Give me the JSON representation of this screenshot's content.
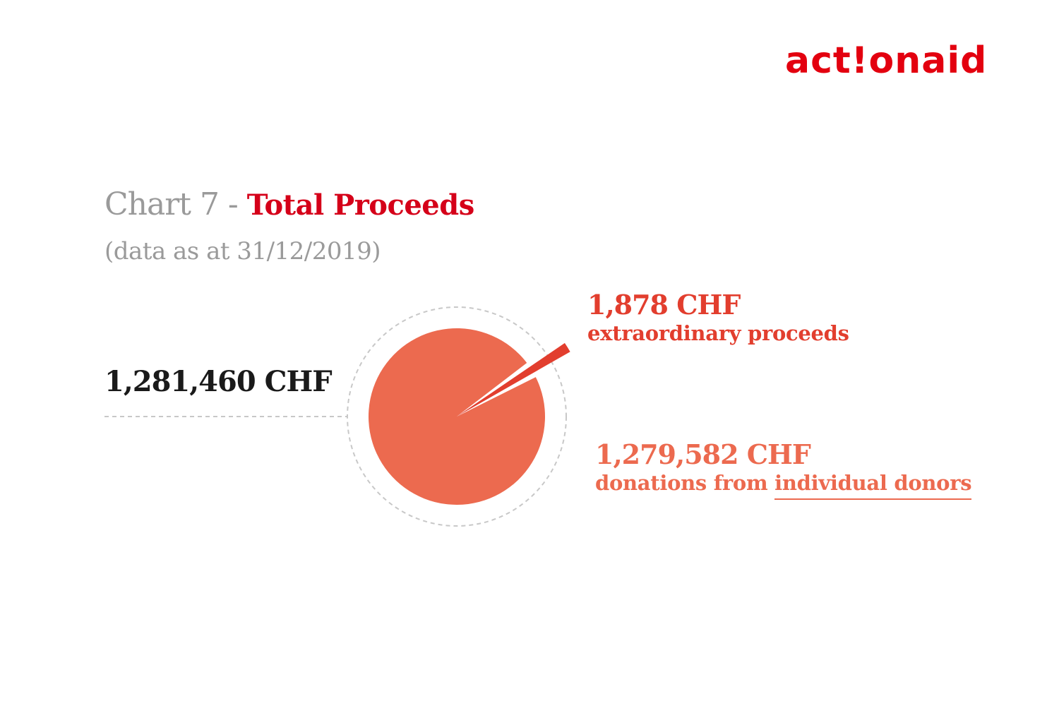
{
  "logo": {
    "text_before": "act",
    "text_mark": "!",
    "text_after": "onaid",
    "color": "#e3000f"
  },
  "title": {
    "prefix": "Chart 7 - ",
    "main": "Total Proceeds",
    "prefix_color": "#9a9a9a",
    "main_color": "#d50019"
  },
  "subtitle": {
    "text": "(data as at 31/12/2019)",
    "color": "#9a9a9a"
  },
  "chart_data": {
    "type": "pie",
    "title": "Total Proceeds",
    "subtitle": "(data as at 31/12/2019)",
    "total": {
      "value": 1281460,
      "label": "1,281,460 CHF",
      "color": "#1a1a1a"
    },
    "slices": [
      {
        "name": "donations from individual donors",
        "prefix": "donations from ",
        "emphasis": "individual donors",
        "value": 1279582,
        "label": "1,279,582 CHF",
        "color": "#ec6a4f"
      },
      {
        "name": "extraordinary proceeds",
        "value": 1878,
        "label": "1,878 CHF",
        "color": "#e23e2e"
      }
    ],
    "guide_color": "#c8c8c8"
  }
}
